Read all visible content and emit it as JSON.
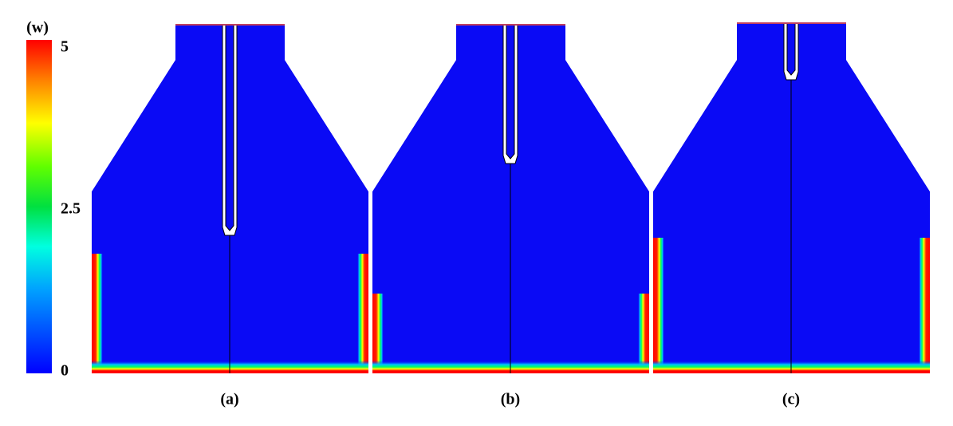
{
  "colorbar": {
    "title": "(w)",
    "range": [
      0,
      5
    ],
    "ticks": [
      0,
      2.5,
      5
    ]
  },
  "panels": [
    {
      "label": "(a)"
    },
    {
      "label": "(b)"
    },
    {
      "label": "(c)"
    }
  ]
}
